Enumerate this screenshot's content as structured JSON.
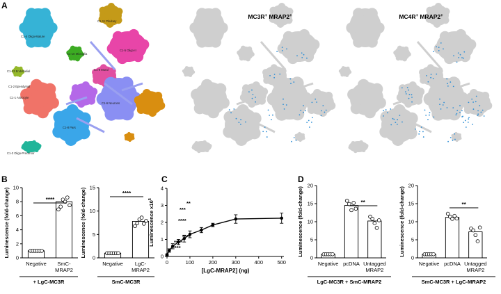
{
  "panel_letters": {
    "a": "A",
    "b": "B",
    "c": "C",
    "d": "D"
  },
  "umap": {
    "titles": [
      {
        "base": "MC3R",
        "sup1": "+",
        "mid": " MRAP2",
        "sup2": "+"
      },
      {
        "base": "MC4R",
        "sup1": "+",
        "mid": " MRAP2",
        "sup2": "+"
      }
    ],
    "cluster_labels": [
      "C1-4 Oligo-Mature",
      "C1-11 Pituitary",
      "C1-10 Microglia",
      "C1-5 Oligo-II",
      "C1-13 Endothelial",
      "C1-2 Ependymal",
      "C1-1 Astrocyte",
      "C1-9 Mural",
      "C1-6 Neurons",
      "C1-8 Pars",
      "C1-3 Oligo-Precursor"
    ],
    "colors": {
      "grey": "#cfcfcf",
      "blue": "#2f8fd6"
    }
  },
  "chart_data": [
    {
      "id": "B-left",
      "type": "bar",
      "categories": [
        "Negative",
        "SmC-MRAP2"
      ],
      "values": [
        1.0,
        8.0
      ],
      "points": [
        [
          1.0,
          1.0,
          1.0,
          1.0,
          1.0,
          1.0
        ],
        [
          6.9,
          7.3,
          8.3,
          8.0,
          8.6,
          7.5
        ]
      ],
      "ylabel": "Luminescence (fold-change)",
      "ylim": [
        0,
        10
      ],
      "yticks": [
        0,
        2,
        4,
        6,
        8,
        10
      ],
      "significance": "****",
      "group_label": "+ LgC-MC3R"
    },
    {
      "id": "B-right",
      "type": "bar",
      "categories": [
        "Negative",
        "LgC-MRAP2"
      ],
      "values": [
        1.0,
        7.8
      ],
      "points": [
        [
          1.0,
          1.0,
          1.0,
          1.0,
          1.0,
          1.0
        ],
        [
          6.8,
          7.4,
          8.2,
          8.6,
          7.3,
          7.9
        ]
      ],
      "ylabel": "Luminescence (fold-change)",
      "ylim": [
        0,
        15
      ],
      "yticks": [
        0,
        5,
        10,
        15
      ],
      "significance": "****",
      "group_label": "SmC-MC3R"
    },
    {
      "id": "C",
      "type": "line",
      "x": [
        0,
        10,
        25,
        50,
        75,
        100,
        150,
        200,
        300,
        500
      ],
      "y": [
        0.1,
        0.35,
        0.6,
        0.85,
        1.05,
        1.3,
        1.55,
        1.85,
        2.2,
        2.25
      ],
      "err": [
        0.05,
        0.1,
        0.15,
        0.15,
        0.2,
        0.2,
        0.15,
        0.1,
        0.25,
        0.3
      ],
      "ylabel": "Luminescence x10",
      "ylabel_sup": "5",
      "xlabel": "[LgC-MRAP2] (ng)",
      "xlim": [
        0,
        510
      ],
      "ylim": [
        0,
        4
      ],
      "xticks": [
        0,
        100,
        200,
        300,
        400,
        500
      ],
      "yticks": [
        0,
        1,
        2,
        3,
        4
      ],
      "annotations": [
        "****",
        "****",
        "****",
        "****",
        "***",
        "**"
      ]
    },
    {
      "id": "D-left",
      "type": "bar",
      "categories": [
        "Negative",
        "pcDNA",
        "Untagged\nMRAP2"
      ],
      "values": [
        1.0,
        14.5,
        10.2
      ],
      "points": [
        [
          1.0,
          1.0,
          1.0,
          1.0,
          1.0
        ],
        [
          15.8,
          14.9,
          13.2,
          15.2,
          13.6
        ],
        [
          11.4,
          10.8,
          9.6,
          8.3,
          10.4
        ]
      ],
      "ylabel": "Luminescence (fold-change)",
      "ylim": [
        0,
        20
      ],
      "yticks": [
        0,
        5,
        10,
        15,
        20
      ],
      "significance": "**",
      "group_label": "LgC-MC3R + SmC-MRAP2"
    },
    {
      "id": "D-right",
      "type": "bar",
      "categories": [
        "Negative",
        "pcDNA",
        "Untagged\nMRAP2"
      ],
      "values": [
        1.0,
        11.2,
        7.2
      ],
      "points": [
        [
          1.0,
          1.0,
          1.0,
          1.0,
          1.0
        ],
        [
          12.2,
          11.4,
          10.8,
          11.6,
          10.9
        ],
        [
          8.1,
          7.6,
          6.3,
          4.6,
          8.4
        ]
      ],
      "ylabel": "Luminescence (fold-change)",
      "ylim": [
        0,
        20
      ],
      "yticks": [
        0,
        5,
        10,
        15,
        20
      ],
      "significance": "**",
      "group_label": "SmC-MC3R + LgC-MRAP2"
    }
  ]
}
